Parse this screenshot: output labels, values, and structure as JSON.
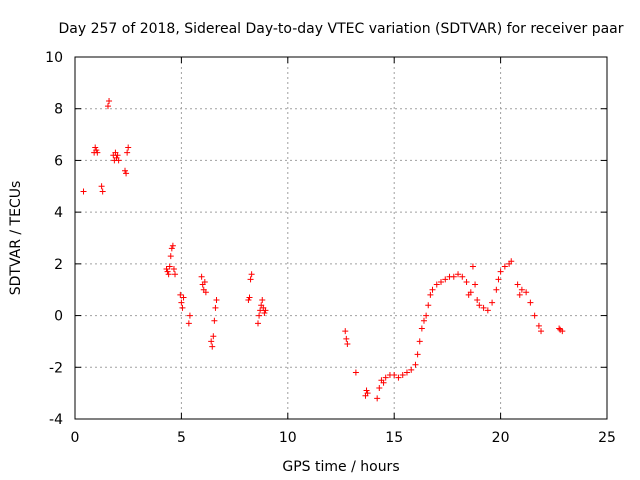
{
  "chart_data": {
    "type": "scatter",
    "title": "Day 257 of 2018, Sidereal Day-to-day VTEC variation (SDTVAR) for receiver paar",
    "xlabel": "GPS time / hours",
    "ylabel": "SDTVAR / TECUs",
    "xlim": [
      0,
      25
    ],
    "ylim": [
      -4,
      10
    ],
    "xticks": [
      "0",
      "5",
      "10",
      "15",
      "20",
      "25"
    ],
    "yticks": [
      "-4",
      "-2",
      "0",
      "2",
      "4",
      "6",
      "8",
      "10"
    ],
    "grid": true,
    "marker": "+",
    "series": [
      {
        "name": "SDTVAR",
        "color": "#ff0000",
        "points": [
          [
            0.4,
            4.8
          ],
          [
            0.9,
            6.3
          ],
          [
            0.95,
            6.5
          ],
          [
            1.0,
            6.4
          ],
          [
            1.05,
            6.3
          ],
          [
            1.25,
            5.0
          ],
          [
            1.3,
            4.8
          ],
          [
            1.55,
            8.1
          ],
          [
            1.6,
            8.3
          ],
          [
            1.8,
            6.2
          ],
          [
            1.85,
            6.0
          ],
          [
            1.9,
            6.3
          ],
          [
            1.95,
            6.1
          ],
          [
            2.0,
            6.2
          ],
          [
            2.05,
            6.0
          ],
          [
            2.35,
            5.6
          ],
          [
            2.4,
            5.5
          ],
          [
            2.45,
            6.3
          ],
          [
            2.5,
            6.5
          ],
          [
            4.3,
            1.8
          ],
          [
            4.35,
            1.7
          ],
          [
            4.4,
            1.6
          ],
          [
            4.45,
            1.9
          ],
          [
            4.5,
            2.3
          ],
          [
            4.55,
            2.6
          ],
          [
            4.6,
            2.7
          ],
          [
            4.65,
            1.8
          ],
          [
            4.7,
            1.6
          ],
          [
            4.95,
            0.8
          ],
          [
            5.0,
            0.5
          ],
          [
            5.05,
            0.3
          ],
          [
            5.1,
            0.7
          ],
          [
            5.35,
            -0.3
          ],
          [
            5.4,
            0.0
          ],
          [
            5.95,
            1.5
          ],
          [
            6.0,
            1.2
          ],
          [
            6.05,
            1.0
          ],
          [
            6.1,
            1.3
          ],
          [
            6.15,
            0.9
          ],
          [
            6.4,
            -1.0
          ],
          [
            6.45,
            -1.2
          ],
          [
            6.5,
            -0.8
          ],
          [
            6.55,
            -0.2
          ],
          [
            6.6,
            0.3
          ],
          [
            6.65,
            0.6
          ],
          [
            8.15,
            0.6
          ],
          [
            8.2,
            0.7
          ],
          [
            8.25,
            1.4
          ],
          [
            8.3,
            1.6
          ],
          [
            8.6,
            -0.3
          ],
          [
            8.65,
            0.0
          ],
          [
            8.7,
            0.2
          ],
          [
            8.75,
            0.4
          ],
          [
            8.8,
            0.6
          ],
          [
            8.85,
            0.3
          ],
          [
            8.9,
            0.1
          ],
          [
            8.95,
            0.2
          ],
          [
            12.7,
            -0.6
          ],
          [
            12.75,
            -0.9
          ],
          [
            12.8,
            -1.1
          ],
          [
            13.2,
            -2.2
          ],
          [
            13.65,
            -3.1
          ],
          [
            13.7,
            -2.9
          ],
          [
            13.75,
            -3.0
          ],
          [
            14.2,
            -3.2
          ],
          [
            14.3,
            -2.8
          ],
          [
            14.4,
            -2.5
          ],
          [
            14.5,
            -2.6
          ],
          [
            14.6,
            -2.4
          ],
          [
            14.8,
            -2.3
          ],
          [
            15.0,
            -2.3
          ],
          [
            15.2,
            -2.4
          ],
          [
            15.4,
            -2.3
          ],
          [
            15.6,
            -2.2
          ],
          [
            15.8,
            -2.1
          ],
          [
            16.0,
            -1.9
          ],
          [
            16.1,
            -1.5
          ],
          [
            16.2,
            -1.0
          ],
          [
            16.3,
            -0.5
          ],
          [
            16.4,
            -0.2
          ],
          [
            16.5,
            0.0
          ],
          [
            16.6,
            0.4
          ],
          [
            16.7,
            0.8
          ],
          [
            16.8,
            1.0
          ],
          [
            17.0,
            1.2
          ],
          [
            17.2,
            1.3
          ],
          [
            17.4,
            1.4
          ],
          [
            17.6,
            1.5
          ],
          [
            17.8,
            1.5
          ],
          [
            18.0,
            1.6
          ],
          [
            18.2,
            1.5
          ],
          [
            18.4,
            1.3
          ],
          [
            18.5,
            0.8
          ],
          [
            18.6,
            0.9
          ],
          [
            18.7,
            1.9
          ],
          [
            18.8,
            1.2
          ],
          [
            18.9,
            0.6
          ],
          [
            19.0,
            0.4
          ],
          [
            19.2,
            0.3
          ],
          [
            19.4,
            0.2
          ],
          [
            19.6,
            0.5
          ],
          [
            19.8,
            1.0
          ],
          [
            19.9,
            1.4
          ],
          [
            20.0,
            1.7
          ],
          [
            20.2,
            1.9
          ],
          [
            20.4,
            2.0
          ],
          [
            20.5,
            2.1
          ],
          [
            20.8,
            1.2
          ],
          [
            20.9,
            0.8
          ],
          [
            21.0,
            1.0
          ],
          [
            21.2,
            0.9
          ],
          [
            21.4,
            0.5
          ],
          [
            21.6,
            0.0
          ],
          [
            21.8,
            -0.4
          ],
          [
            21.9,
            -0.6
          ],
          [
            22.75,
            -0.5
          ],
          [
            22.8,
            -0.55
          ],
          [
            22.9,
            -0.6
          ]
        ]
      }
    ]
  }
}
